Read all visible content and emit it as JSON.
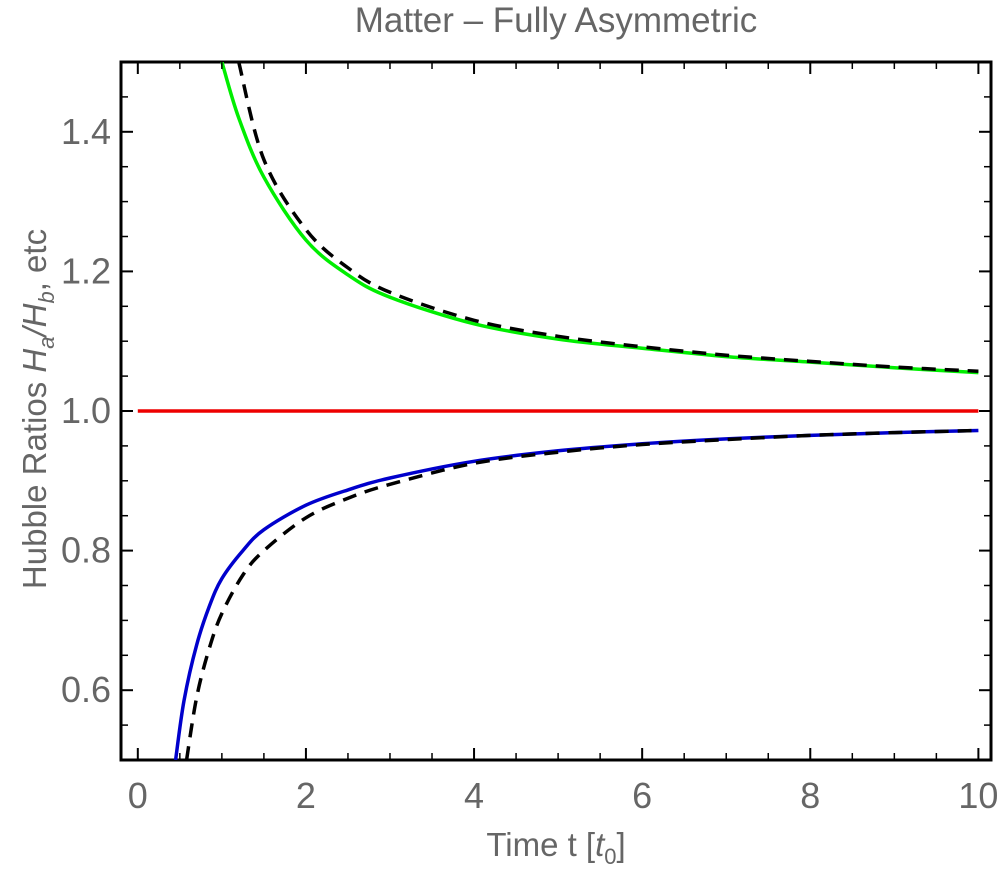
{
  "chart_data": {
    "type": "line",
    "title": "Matter – Fully Asymmetric",
    "xlabel": {
      "main": "Time  t [",
      "sym": "t",
      "sub": "0",
      "close": "]"
    },
    "ylabel": {
      "prefix": "Hubble Ratios   ",
      "h1": "H",
      "sub1": "a",
      "slash": "/",
      "h2": "H",
      "sub2": "b",
      "suffix": ", etc"
    },
    "xlim": [
      -0.2,
      10.15
    ],
    "ylim": [
      0.5,
      1.5
    ],
    "x_ticks": [
      0,
      2,
      4,
      6,
      8,
      10
    ],
    "x_tick_labels": [
      "0",
      "2",
      "4",
      "6",
      "8",
      "10"
    ],
    "y_ticks": [
      0.6,
      0.8,
      1.0,
      1.2,
      1.4
    ],
    "y_tick_labels": [
      "0.6",
      "0.8",
      "1.0",
      "1.2",
      "1.4"
    ],
    "grid": false,
    "colors": {
      "green": "#00ee00",
      "red": "#ee0000",
      "blue": "#0000cc",
      "dashed": "#000000",
      "axis": "#000000",
      "text": "#666666"
    },
    "series": [
      {
        "color": "green",
        "style": "solid",
        "x": [
          1.0,
          1.2,
          1.5,
          2.0,
          2.5,
          3.0,
          4.0,
          5.0,
          6.0,
          7.0,
          8.0,
          9.0,
          10.0
        ],
        "y": [
          1.5,
          1.42,
          1.335,
          1.245,
          1.195,
          1.163,
          1.125,
          1.103,
          1.09,
          1.078,
          1.07,
          1.062,
          1.055
        ]
      },
      {
        "color": "dashed",
        "style": "dashed",
        "x": [
          1.2,
          1.5,
          2.0,
          2.5,
          3.0,
          4.0,
          5.0,
          6.0,
          7.0,
          8.0,
          9.0,
          10.0
        ],
        "y": [
          1.5,
          1.36,
          1.26,
          1.205,
          1.17,
          1.13,
          1.107,
          1.092,
          1.08,
          1.071,
          1.063,
          1.057
        ]
      },
      {
        "color": "red",
        "style": "solid",
        "x": [
          0.0,
          10.0
        ],
        "y": [
          1.0,
          1.0
        ]
      },
      {
        "color": "blue",
        "style": "solid",
        "x": [
          0.45,
          0.55,
          0.7,
          0.85,
          1.0,
          1.25,
          1.5,
          2.0,
          2.5,
          3.0,
          4.0,
          5.0,
          6.0,
          7.0,
          8.0,
          9.0,
          10.0
        ],
        "y": [
          0.5,
          0.585,
          0.665,
          0.72,
          0.76,
          0.8,
          0.83,
          0.865,
          0.887,
          0.904,
          0.928,
          0.943,
          0.953,
          0.96,
          0.965,
          0.969,
          0.972
        ]
      },
      {
        "color": "dashed",
        "style": "dashed",
        "x": [
          0.58,
          0.7,
          0.85,
          1.0,
          1.25,
          1.5,
          2.0,
          2.5,
          3.0,
          4.0,
          5.0,
          6.0,
          7.0,
          8.0,
          9.0,
          10.0
        ],
        "y": [
          0.5,
          0.59,
          0.66,
          0.71,
          0.765,
          0.8,
          0.847,
          0.875,
          0.895,
          0.925,
          0.941,
          0.952,
          0.959,
          0.965,
          0.969,
          0.972
        ]
      }
    ]
  }
}
